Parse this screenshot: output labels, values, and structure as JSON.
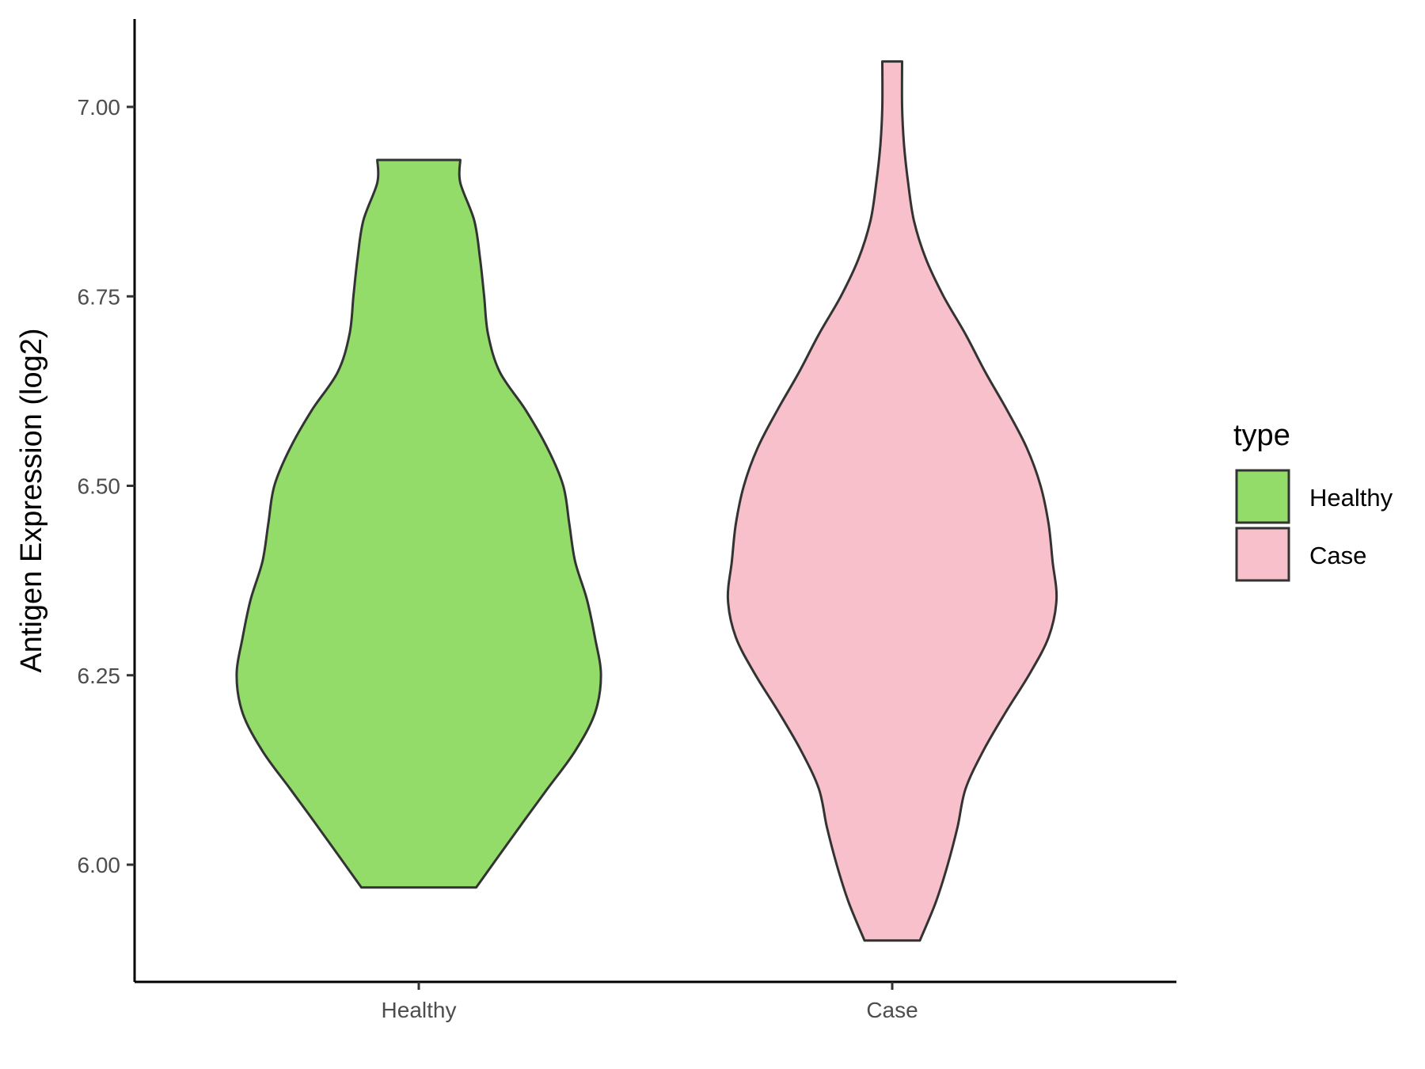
{
  "chart_data": {
    "type": "violin",
    "ylabel": "Antigen Expression (log2)",
    "xlabel": "",
    "categories": [
      "Healthy",
      "Case"
    ],
    "ylim": [
      5.85,
      7.12
    ],
    "yticks": [
      6.0,
      6.25,
      6.5,
      6.75,
      7.0
    ],
    "ytick_labels": [
      "6.00",
      "6.25",
      "6.50",
      "6.75",
      "7.00"
    ],
    "grid": false,
    "legend": {
      "title": "type",
      "position": "right",
      "entries": [
        {
          "label": "Healthy",
          "color": "#93dc6a"
        },
        {
          "label": "Case",
          "color": "#f8c0cb"
        }
      ]
    },
    "series": [
      {
        "category": "Healthy",
        "color": "#93dc6a",
        "y_min": 5.97,
        "y_max": 6.93,
        "density_profile": [
          [
            5.97,
            0.296
          ],
          [
            6.05,
            0.52
          ],
          [
            6.1,
            0.663
          ],
          [
            6.15,
            0.806
          ],
          [
            6.2,
            0.908
          ],
          [
            6.25,
            0.939
          ],
          [
            6.3,
            0.908
          ],
          [
            6.35,
            0.867
          ],
          [
            6.4,
            0.806
          ],
          [
            6.45,
            0.776
          ],
          [
            6.5,
            0.745
          ],
          [
            6.55,
            0.663
          ],
          [
            6.6,
            0.551
          ],
          [
            6.65,
            0.418
          ],
          [
            6.7,
            0.357
          ],
          [
            6.75,
            0.337
          ],
          [
            6.8,
            0.316
          ],
          [
            6.85,
            0.286
          ],
          [
            6.9,
            0.214
          ],
          [
            6.93,
            0.214
          ]
        ]
      },
      {
        "category": "Case",
        "color": "#f8c0cb",
        "y_min": 5.9,
        "y_max": 7.06,
        "density_profile": [
          [
            5.9,
            0.143
          ],
          [
            5.95,
            0.224
          ],
          [
            6.0,
            0.286
          ],
          [
            6.05,
            0.337
          ],
          [
            6.1,
            0.378
          ],
          [
            6.15,
            0.469
          ],
          [
            6.2,
            0.582
          ],
          [
            6.25,
            0.704
          ],
          [
            6.3,
            0.806
          ],
          [
            6.35,
            0.847
          ],
          [
            6.4,
            0.827
          ],
          [
            6.45,
            0.806
          ],
          [
            6.5,
            0.765
          ],
          [
            6.55,
            0.694
          ],
          [
            6.6,
            0.592
          ],
          [
            6.65,
            0.48
          ],
          [
            6.7,
            0.378
          ],
          [
            6.75,
            0.265
          ],
          [
            6.8,
            0.173
          ],
          [
            6.85,
            0.112
          ],
          [
            6.9,
            0.082
          ],
          [
            6.95,
            0.061
          ],
          [
            7.0,
            0.051
          ],
          [
            7.06,
            0.051
          ]
        ]
      }
    ]
  }
}
